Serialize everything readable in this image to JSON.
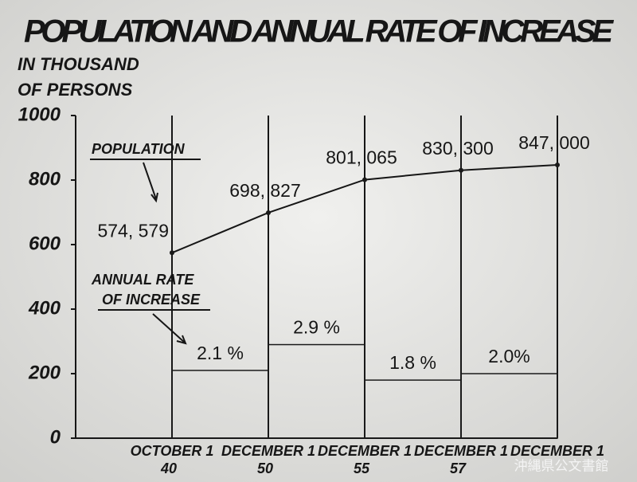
{
  "chart_data": {
    "type": "line-bar",
    "title": "POPULATION AND ANNUAL RATE OF INCREASE",
    "y_label_lines": [
      "IN THOUSAND",
      "OF PERSONS"
    ],
    "categories": [
      "OCTOBER 1",
      "DECEMBER 1",
      "DECEMBER 1",
      "DECEMBER 1",
      "DECEMBER 1"
    ],
    "category_years": [
      "40",
      "50",
      "55",
      "57",
      null
    ],
    "ylim": [
      0,
      1000
    ],
    "yticks": [
      0,
      200,
      400,
      600,
      800,
      1000
    ],
    "y2lim": [
      0,
      10
    ],
    "series": [
      {
        "name": "POPULATION",
        "kind": "line",
        "color": "#1a1a1a",
        "values": [
          574.579,
          698.827,
          801.065,
          830.3,
          847
        ],
        "value_labels": [
          "574, 579",
          "698, 827",
          "801, 065",
          "830, 300",
          "847, 000"
        ]
      },
      {
        "name_lines": [
          "ANNUAL RATE",
          "OF INCREASE"
        ],
        "kind": "bar",
        "axis": "y2",
        "color": "#1a1a1a",
        "values": [
          null,
          2.1,
          2.9,
          1.8,
          2.0
        ],
        "value_labels": [
          null,
          "2.1 %",
          "2.9 %",
          "1.8 %",
          "2.0%"
        ]
      }
    ],
    "watermark": "沖縄県公文書館"
  }
}
